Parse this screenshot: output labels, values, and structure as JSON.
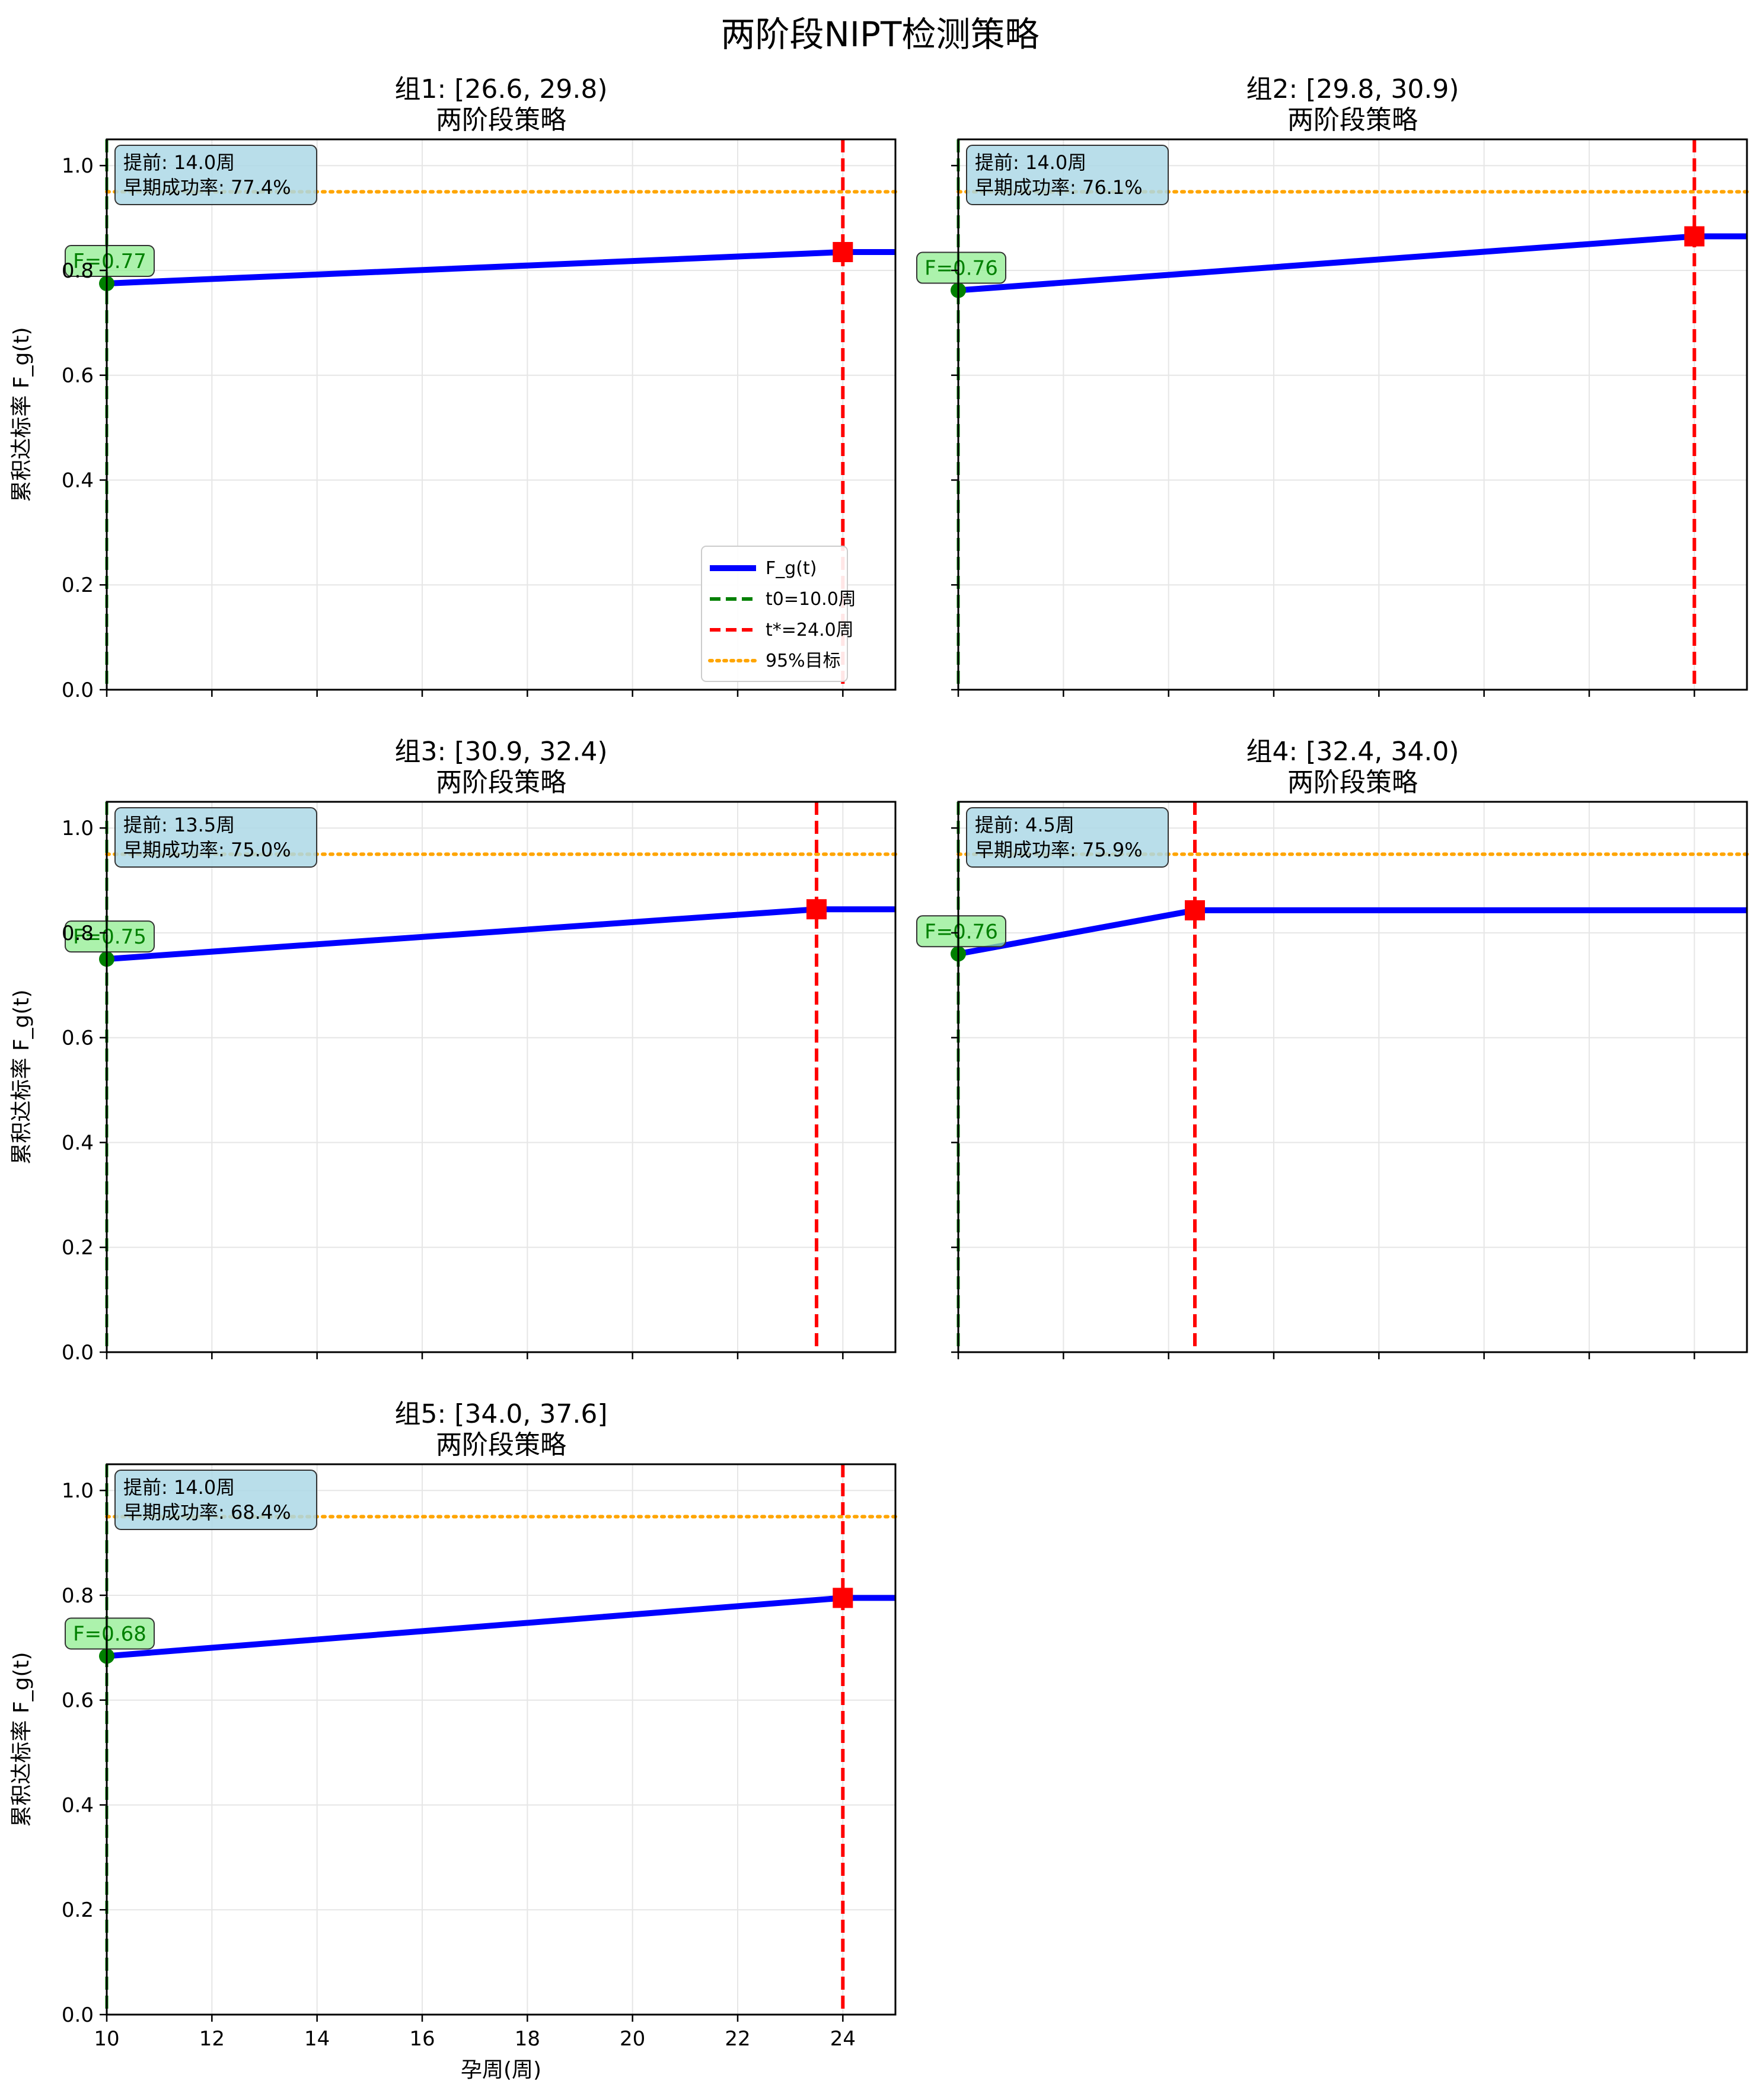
{
  "figure_title": "两阶段NIPT检测策略",
  "chart_data": {
    "type": "line",
    "x": [
      10,
      25
    ],
    "xticks": [
      10,
      12,
      14,
      16,
      18,
      20,
      22,
      24
    ],
    "xlim": [
      10,
      25
    ],
    "ylim": [
      0,
      1.05
    ],
    "yticks": [
      0.0,
      0.2,
      0.4,
      0.6,
      0.8,
      1.0
    ],
    "ytick_labels": [
      "0.0",
      "0.2",
      "0.4",
      "0.6",
      "0.8",
      "1.0"
    ],
    "xlabel": "孕周(周)",
    "ylabel": "累积达标率 F_g(t)",
    "target_level": 0.95,
    "grid": true,
    "legend_position": "lower-right",
    "legend": [
      {
        "label": "F_g(t)",
        "color": "#0000ff",
        "style": "solid"
      },
      {
        "label": "t0=10.0周",
        "color": "#008000",
        "style": "dashed"
      },
      {
        "label": "t*=24.0周",
        "color": "#ff0000",
        "style": "dashed"
      },
      {
        "label": "95%目标",
        "color": "#ffa500",
        "style": "dotted"
      }
    ],
    "subplots": [
      {
        "title": "组1: [26.6, 29.8)",
        "subtitle": "两阶段策略",
        "t0": 10.0,
        "t_star": 24.0,
        "F_t0": 0.775,
        "F_tstar": 0.835,
        "f_label": "F=0.77",
        "annotation_lines": [
          "提前: 14.0周",
          "早期成功率: 77.4%"
        ]
      },
      {
        "title": "组2: [29.8, 30.9)",
        "subtitle": "两阶段策略",
        "t0": 10.0,
        "t_star": 24.0,
        "F_t0": 0.762,
        "F_tstar": 0.865,
        "f_label": "F=0.76",
        "annotation_lines": [
          "提前: 14.0周",
          "早期成功率: 76.1%"
        ]
      },
      {
        "title": "组3: [30.9, 32.4)",
        "subtitle": "两阶段策略",
        "t0": 10.0,
        "t_star": 23.5,
        "F_t0": 0.75,
        "F_tstar": 0.845,
        "f_label": "F=0.75",
        "annotation_lines": [
          "提前: 13.5周",
          "早期成功率: 75.0%"
        ]
      },
      {
        "title": "组4: [32.4, 34.0)",
        "subtitle": "两阶段策略",
        "t0": 10.0,
        "t_star": 14.5,
        "F_t0": 0.76,
        "F_tstar": 0.843,
        "f_label": "F=0.76",
        "annotation_lines": [
          "提前: 4.5周",
          "早期成功率: 75.9%"
        ]
      },
      {
        "title": "组5: [34.0, 37.6]",
        "subtitle": "两阶段策略",
        "t0": 10.0,
        "t_star": 24.0,
        "F_t0": 0.684,
        "F_tstar": 0.795,
        "f_label": "F=0.68",
        "annotation_lines": [
          "提前: 14.0周",
          "早期成功率: 68.4%"
        ]
      }
    ]
  },
  "colors": {
    "curve": "#0000ff",
    "t0_line": "#008000",
    "tstar_line": "#ff0000",
    "target_line": "#ffa500",
    "grid": "#e6e6e6",
    "annotation_box": "#add8e6",
    "f_label_box": "#90ee90"
  }
}
